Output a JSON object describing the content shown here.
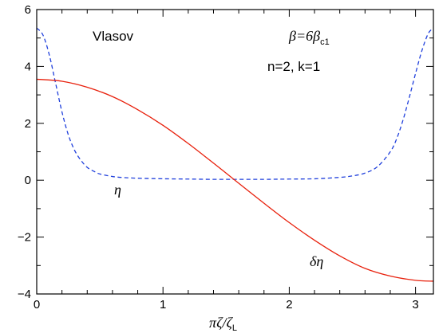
{
  "chart_data": {
    "type": "line",
    "xlim": [
      0,
      3.14159
    ],
    "ylim": [
      -4,
      6
    ],
    "x_ticks_major": [
      0,
      1,
      2,
      3
    ],
    "x_tick_labels": [
      "0",
      "1",
      "2",
      "3"
    ],
    "y_ticks_major": [
      -4,
      -2,
      0,
      2,
      4,
      6
    ],
    "y_tick_labels": [
      "−4",
      "−2",
      "0",
      "2",
      "4",
      "6"
    ],
    "x_minor_step": 0.2,
    "y_minor_step": 1,
    "grid": false,
    "xlabel": {
      "main": "πζ/ζ",
      "sub": "L"
    },
    "annotations": {
      "model": "Vlasov",
      "beta": {
        "lhs": "β=6β",
        "sub": "c1"
      },
      "params": "n=2,  k=1"
    },
    "series": [
      {
        "name": "η",
        "color": "#1f3fdc",
        "style": "dashed",
        "x": [
          0,
          0.05,
          0.1,
          0.15,
          0.2,
          0.25,
          0.3,
          0.35,
          0.4,
          0.45,
          0.5,
          0.6,
          0.7,
          0.8,
          1.0,
          1.2,
          1.4,
          1.57,
          1.8,
          2.0,
          2.2,
          2.4,
          2.5,
          2.6,
          2.7,
          2.8,
          2.85,
          2.9,
          2.95,
          3.0,
          3.05,
          3.1,
          3.14159
        ],
        "y": [
          5.35,
          5.1,
          4.4,
          3.4,
          2.4,
          1.6,
          1.05,
          0.7,
          0.45,
          0.32,
          0.22,
          0.13,
          0.09,
          0.07,
          0.05,
          0.04,
          0.03,
          0.03,
          0.03,
          0.04,
          0.05,
          0.1,
          0.15,
          0.25,
          0.48,
          1.0,
          1.45,
          2.1,
          2.9,
          3.75,
          4.55,
          5.15,
          5.35
        ]
      },
      {
        "name": "δη",
        "color": "#e8200c",
        "style": "solid",
        "x": [
          0,
          0.2,
          0.4,
          0.6,
          0.8,
          1.0,
          1.2,
          1.4,
          1.57,
          1.8,
          2.0,
          2.2,
          2.4,
          2.6,
          2.8,
          3.0,
          3.14159
        ],
        "y": [
          3.55,
          3.48,
          3.27,
          2.94,
          2.48,
          1.93,
          1.29,
          0.6,
          0.0,
          -0.81,
          -1.49,
          -2.11,
          -2.66,
          -3.1,
          -3.37,
          -3.52,
          -3.55
        ]
      }
    ]
  }
}
